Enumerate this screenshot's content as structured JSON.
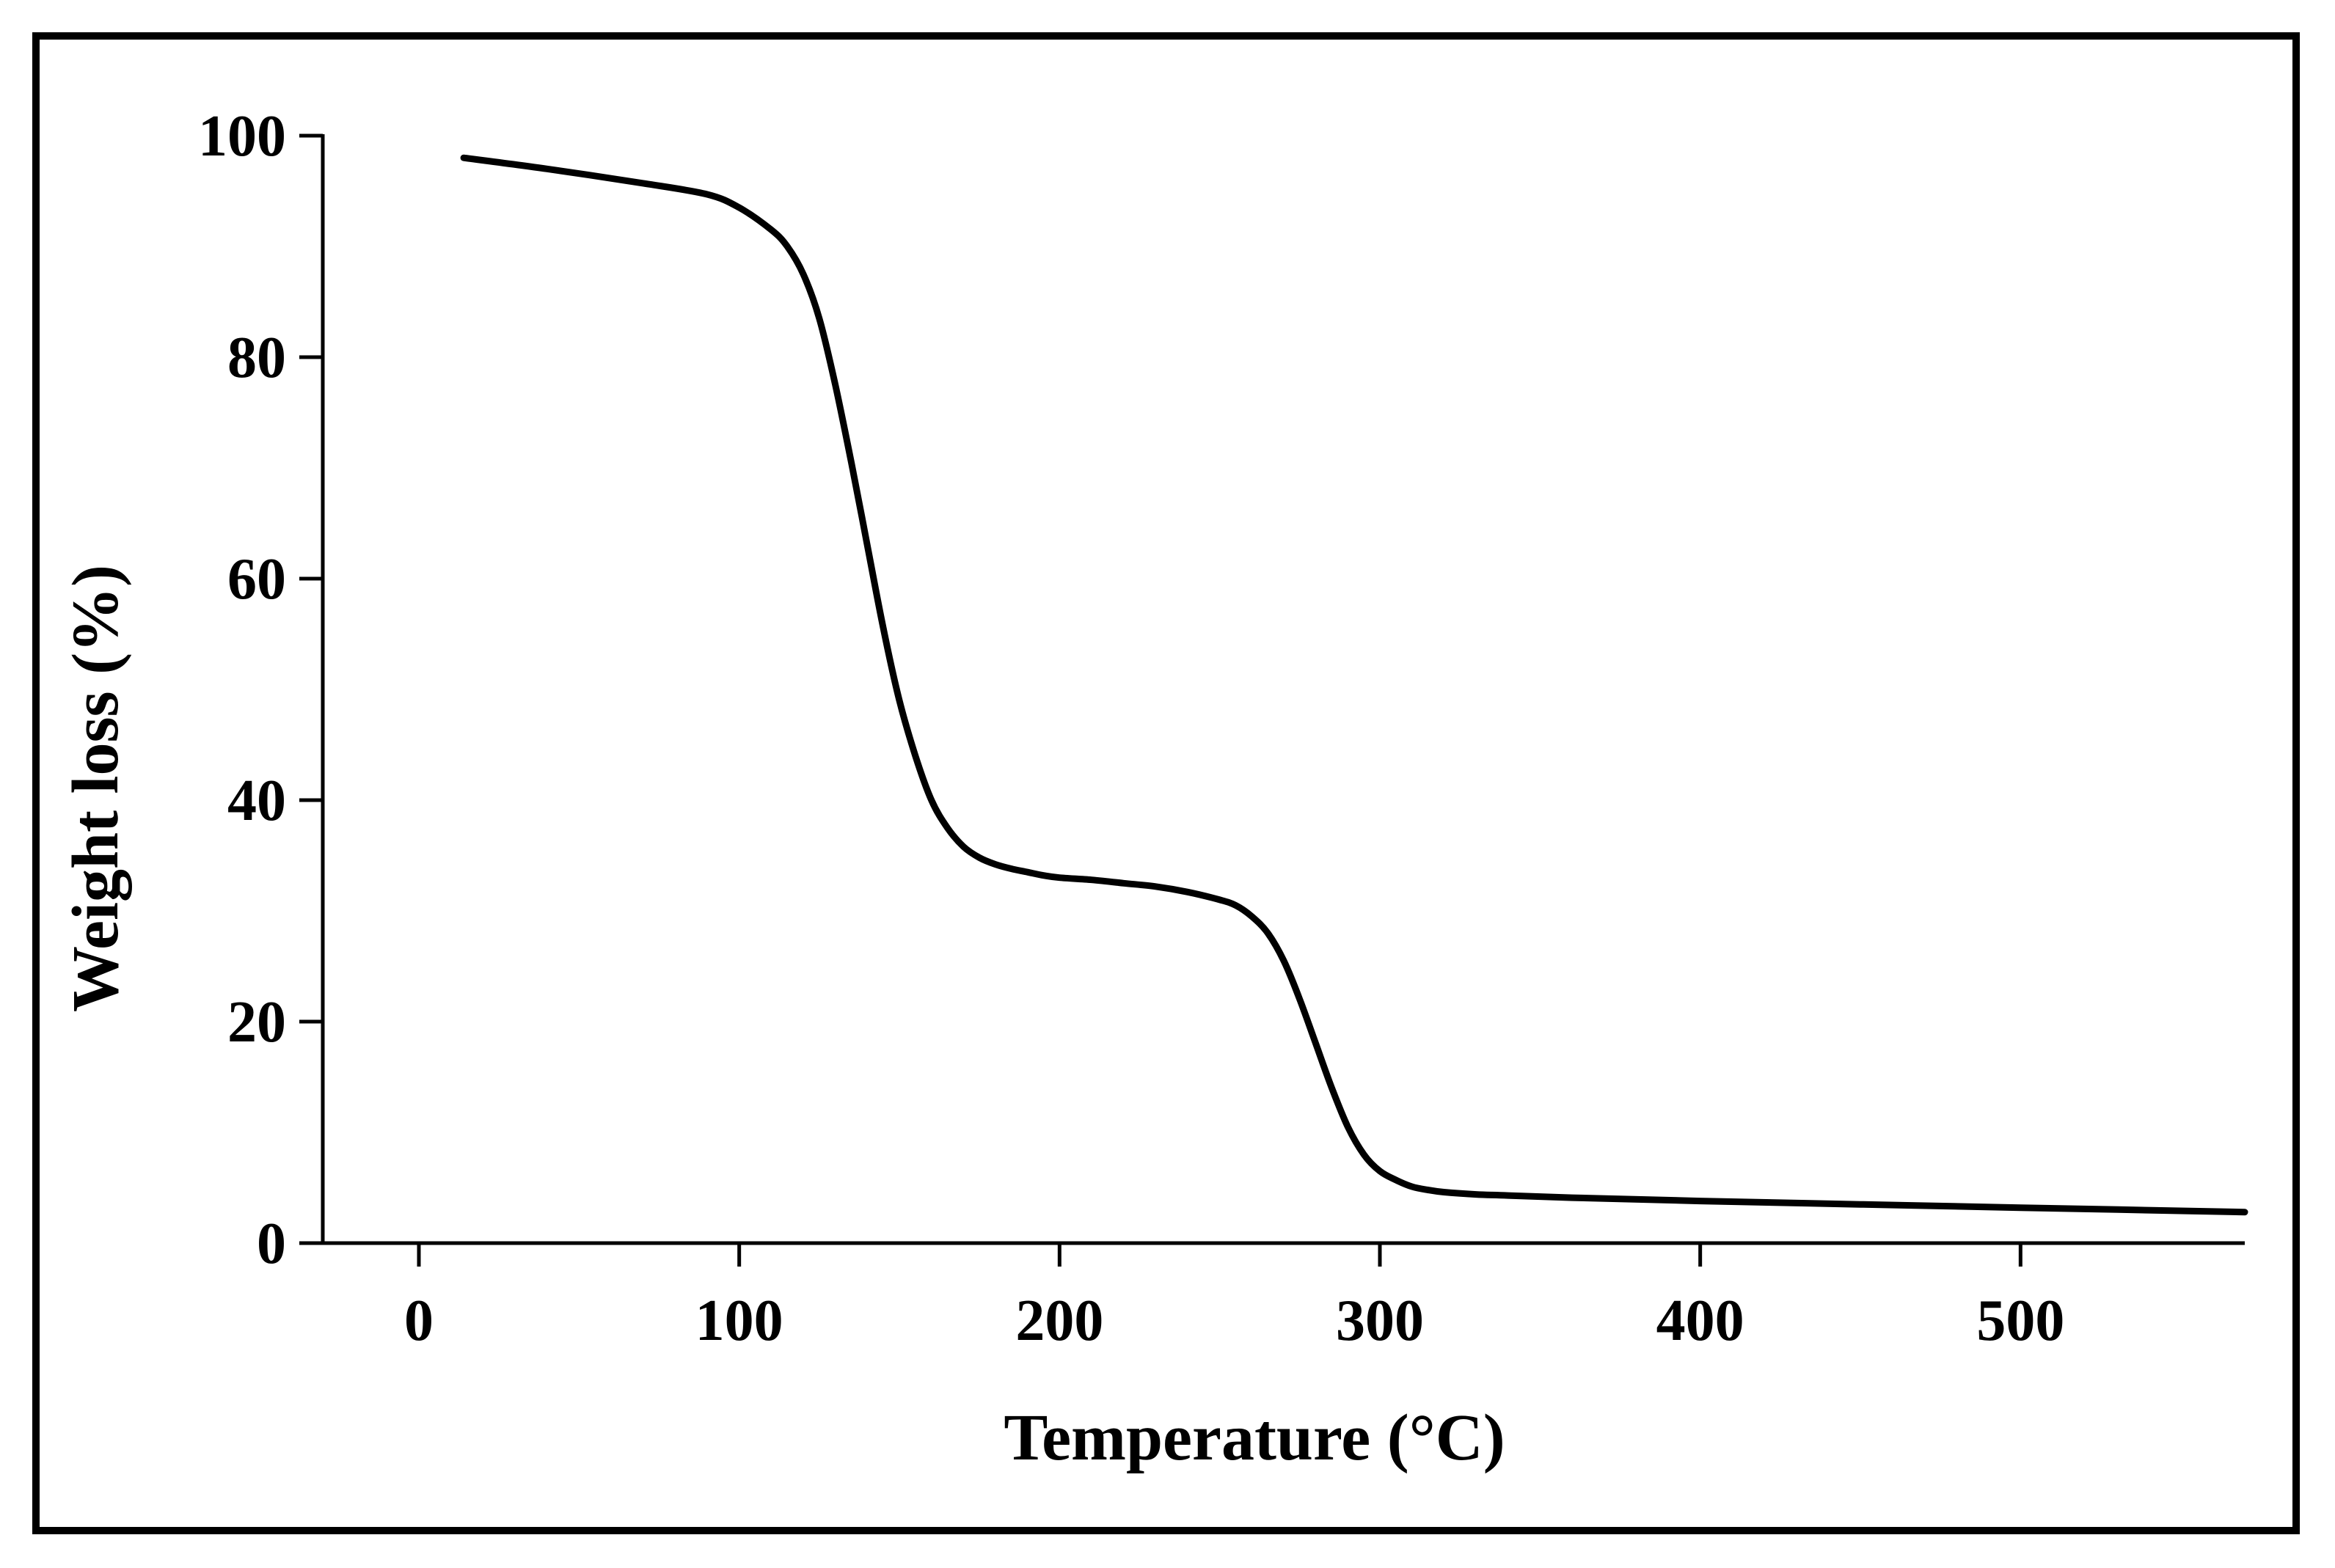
{
  "chart_data": {
    "type": "line",
    "title": "",
    "xlabel": "Temperature (°C)",
    "ylabel": "Weight loss (%)",
    "xlim": [
      -30,
      570
    ],
    "ylim": [
      0,
      100
    ],
    "x_ticks": [
      0,
      100,
      200,
      300,
      400,
      500
    ],
    "y_ticks": [
      0,
      20,
      40,
      60,
      80,
      100
    ],
    "x_tick_labels": [
      "0",
      "100",
      "200",
      "300",
      "400",
      "500"
    ],
    "y_tick_labels": [
      "0",
      "20",
      "40",
      "60",
      "80",
      "100"
    ],
    "grid": false,
    "legend": "none",
    "line_color": "#000000",
    "series": [
      {
        "x": [
          14,
          40,
          70,
          90,
          100,
          110,
          115,
          120,
          125,
          130,
          135,
          140,
          145,
          150,
          155,
          160,
          165,
          170,
          175,
          180,
          185,
          190,
          195,
          200,
          210,
          220,
          230,
          240,
          250,
          255,
          260,
          265,
          270,
          275,
          280,
          285,
          290,
          295,
          300,
          305,
          310,
          315,
          320,
          330,
          340,
          360,
          400,
          450,
          500,
          570
        ],
        "y": [
          98,
          97,
          95.7,
          94.7,
          93.5,
          91.5,
          90,
          87.5,
          83.5,
          77.5,
          70.5,
          63,
          55.5,
          49,
          44,
          40,
          37.5,
          35.8,
          34.8,
          34.2,
          33.8,
          33.5,
          33.2,
          33,
          32.8,
          32.5,
          32.2,
          31.7,
          31,
          30.5,
          29.5,
          28,
          25.5,
          22,
          18,
          14,
          10.5,
          8,
          6.5,
          5.7,
          5.1,
          4.8,
          4.6,
          4.4,
          4.3,
          4.1,
          3.8,
          3.5,
          3.2,
          2.8
        ]
      }
    ]
  }
}
